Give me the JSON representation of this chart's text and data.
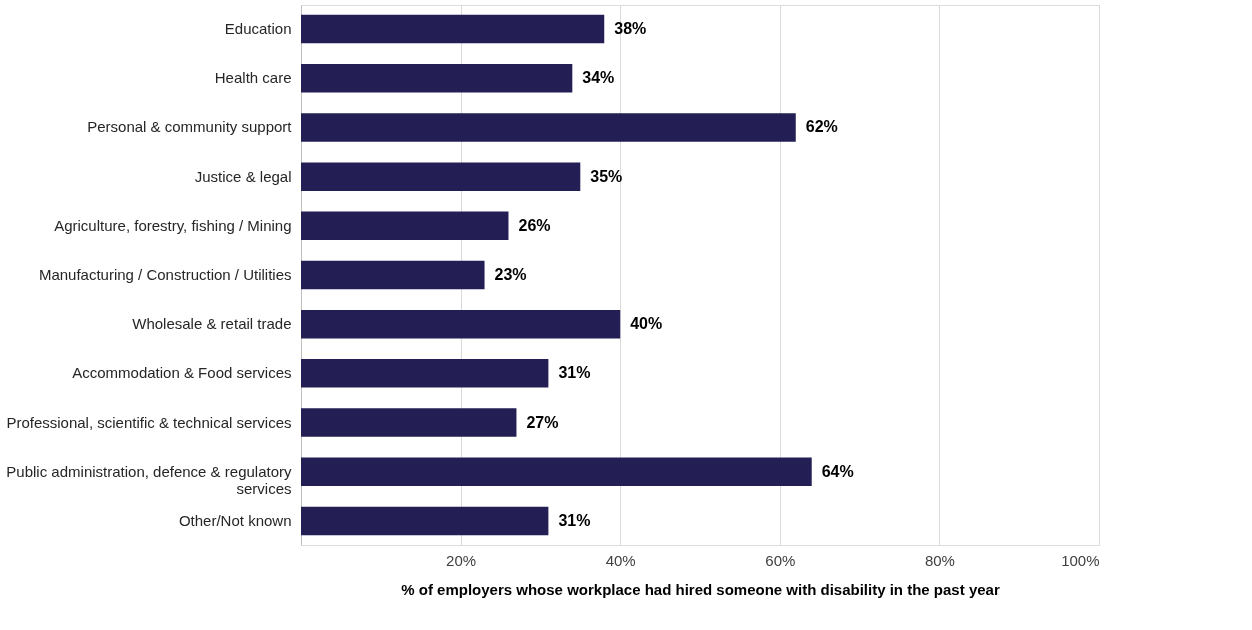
{
  "chart_data": {
    "type": "bar",
    "orientation": "horizontal",
    "categories": [
      "Education",
      "Health care",
      "Personal & community support",
      "Justice & legal",
      "Agriculture, forestry, fishing / Mining",
      "Manufacturing / Construction / Utilities",
      "Wholesale & retail trade",
      "Accommodation & Food services",
      "Professional, scientific & technical services",
      "Public administration, defence & regulatory\nservices",
      "Other/Not known"
    ],
    "values": [
      38,
      34,
      62,
      35,
      26,
      23,
      40,
      31,
      27,
      64,
      31
    ],
    "value_labels": [
      "38%",
      "34%",
      "62%",
      "35%",
      "26%",
      "23%",
      "40%",
      "31%",
      "27%",
      "64%",
      "31%"
    ],
    "color": "#231f55",
    "xlim": [
      0,
      100
    ],
    "xticks": [
      {
        "value": 20,
        "label": "20%"
      },
      {
        "value": 40,
        "label": "40%"
      },
      {
        "value": 60,
        "label": "60%"
      },
      {
        "value": 80,
        "label": "80%"
      },
      {
        "value": 100,
        "label": "100%"
      }
    ],
    "xlabel": "% of employers whose workplace had hired someone with disability in the past year",
    "grid": "x"
  }
}
